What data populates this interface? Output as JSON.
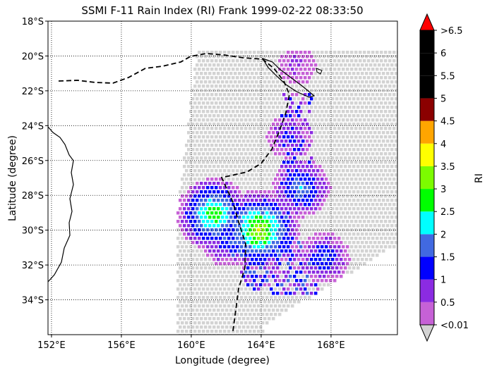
{
  "title": "SSMI F-11 Rain Index (RI) Frank 1999-02-22 08:33:50",
  "xlabel": "Longitude (degree)",
  "ylabel": "Latitude (degree)",
  "x_ticks": [
    "152°E",
    "156°E",
    "160°E",
    "164°E",
    "168°E"
  ],
  "y_ticks": [
    "18°S",
    "20°S",
    "22°S",
    "24°S",
    "26°S",
    "28°S",
    "30°S",
    "32°S",
    "34°S"
  ],
  "colorbar": {
    "label": "RI",
    "tick_labels": [
      "<0.01",
      "0.5",
      "1",
      "1.5",
      "2",
      "2.5",
      "3",
      "3.5",
      "4",
      "4.5",
      "5",
      "5.5",
      "6",
      ">6.5"
    ],
    "colors": [
      "#c661d6",
      "#8b2be2",
      "#0000ff",
      "#4169e1",
      "#00ffff",
      "#00ff00",
      "#7cfc00",
      "#ffff00",
      "#ffa500",
      "#8b0000",
      "#000000",
      "#000000",
      "#000000"
    ],
    "under_color": "#d3d3d3",
    "over_color": "#ff0000"
  },
  "chart_data": {
    "type": "heatmap",
    "title": "SSMI F-11 Rain Index (RI) Frank 1999-02-22 08:33:50",
    "xlabel": "Longitude (degree)",
    "ylabel": "Latitude (degree)",
    "xlim": [
      151.8,
      171.8
    ],
    "ylim": [
      -36,
      -18
    ],
    "grid": true,
    "clusters": [
      {
        "lon": 161.2,
        "lat": -29.0,
        "ri": 3.0
      },
      {
        "lon": 163.8,
        "lat": -29.9,
        "ri": 3.5
      },
      {
        "lon": 162.0,
        "lat": -30.5,
        "ri": 1.5
      },
      {
        "lon": 166.2,
        "lat": -27.5,
        "ri": 2.0
      },
      {
        "lon": 167.5,
        "lat": -31.5,
        "ri": 1.5
      },
      {
        "lon": 165.5,
        "lat": -24.5,
        "ri": 1.0
      },
      {
        "lon": 166.0,
        "lat": -20.5,
        "ri": 0.5
      }
    ]
  }
}
